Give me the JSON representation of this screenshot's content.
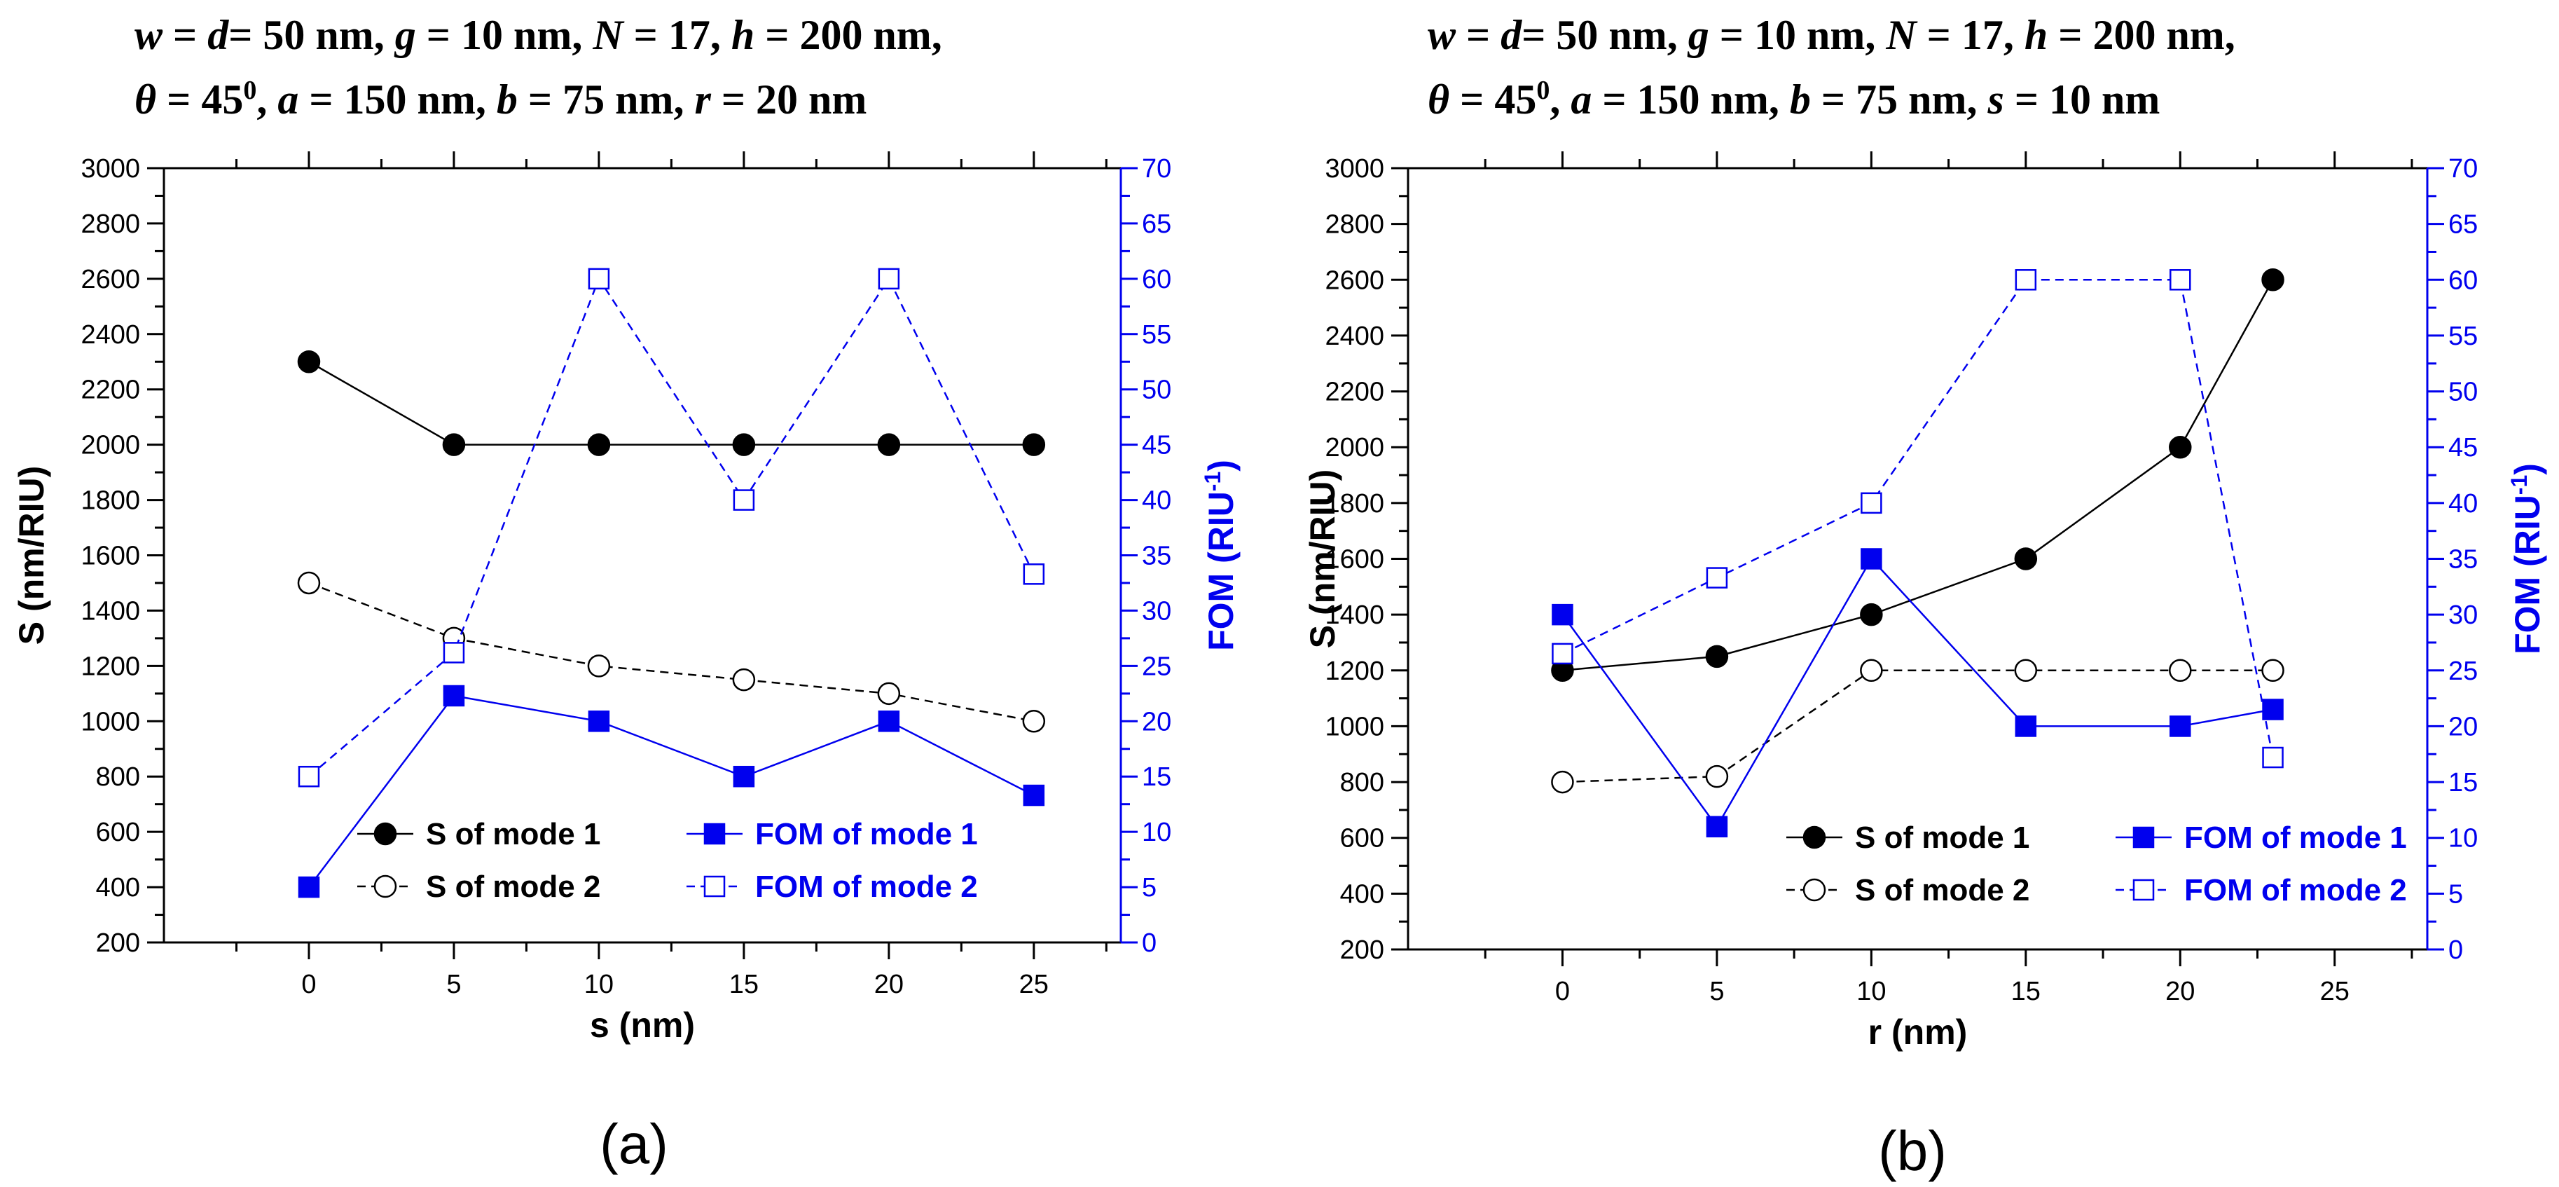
{
  "chart_data": [
    {
      "type": "line",
      "panel_label": "(a)",
      "title_lines": [
        [
          {
            "t": "w",
            "i": true
          },
          {
            "t": " = "
          },
          {
            "t": "d",
            "i": true
          },
          {
            "t": "= 50 nm, "
          },
          {
            "t": "g",
            "i": true
          },
          {
            "t": " = 10 nm, "
          },
          {
            "t": "N",
            "i": true
          },
          {
            "t": " = 17, "
          },
          {
            "t": "h",
            "i": true
          },
          {
            "t": " = 200 nm,"
          }
        ],
        [
          {
            "t": "θ",
            "i": true
          },
          {
            "t": " = 45"
          },
          {
            "t": "0",
            "sup": true
          },
          {
            "t": ", "
          },
          {
            "t": "a",
            "i": true
          },
          {
            "t": " = 150 nm, "
          },
          {
            "t": "b",
            "i": true
          },
          {
            "t": " = 75 nm, "
          },
          {
            "t": "r",
            "i": true
          },
          {
            "t": " = 20 nm"
          }
        ]
      ],
      "xlabel": "s (nm)",
      "ylabel_left": "S (nm/RIU)",
      "ylabel_right": "FOM (RIU",
      "ylabel_right_sup": "-1",
      "ylabel_right_close": ")",
      "xlim": [
        -5,
        28
      ],
      "xticks": [
        0,
        5,
        10,
        15,
        20,
        25
      ],
      "ylim_left": [
        200,
        3000
      ],
      "yticks_left": [
        200,
        400,
        600,
        800,
        1000,
        1200,
        1400,
        1600,
        1800,
        2000,
        2200,
        2400,
        2600,
        2800,
        3000
      ],
      "ylim_right": [
        0,
        70
      ],
      "yticks_right": [
        0,
        5,
        10,
        15,
        20,
        25,
        30,
        35,
        40,
        45,
        50,
        55,
        60,
        65,
        70
      ],
      "series": [
        {
          "name": "S of mode 1",
          "axis": "left",
          "marker": "circle",
          "filled": true,
          "dashed": false,
          "color": "#000000",
          "x": [
            0,
            5,
            10,
            15,
            20,
            25
          ],
          "values": [
            2300,
            2000,
            2000,
            2000,
            2000,
            2000
          ]
        },
        {
          "name": "S of mode 2",
          "axis": "left",
          "marker": "circle",
          "filled": false,
          "dashed": true,
          "color": "#000000",
          "x": [
            0,
            5,
            10,
            15,
            20,
            25
          ],
          "values": [
            1500,
            1300,
            1200,
            1150,
            1100,
            1000
          ]
        },
        {
          "name": "FOM of mode 1",
          "axis": "right",
          "marker": "square",
          "filled": true,
          "dashed": false,
          "color": "#0000ee",
          "x": [
            0,
            5,
            10,
            15,
            20,
            25
          ],
          "values": [
            5,
            22.3,
            20,
            15,
            20,
            13.3
          ]
        },
        {
          "name": "FOM of mode 2",
          "axis": "right",
          "marker": "square",
          "filled": false,
          "dashed": true,
          "color": "#0000ee",
          "x": [
            0,
            5,
            10,
            15,
            20,
            25
          ],
          "values": [
            15,
            26.2,
            60,
            40,
            60,
            33.3
          ]
        }
      ],
      "legend": {
        "placement": "bottom-center",
        "columns": [
          [
            "S of mode 1",
            "S of mode 2"
          ],
          [
            "FOM of mode 1",
            "FOM of mode 2"
          ]
        ]
      }
    },
    {
      "type": "line",
      "panel_label": "(b)",
      "title_lines": [
        [
          {
            "t": "w",
            "i": true
          },
          {
            "t": " = "
          },
          {
            "t": "d",
            "i": true
          },
          {
            "t": "= 50 nm, "
          },
          {
            "t": "g",
            "i": true
          },
          {
            "t": " = 10 nm, "
          },
          {
            "t": "N",
            "i": true
          },
          {
            "t": " = 17, "
          },
          {
            "t": "h",
            "i": true
          },
          {
            "t": " = 200 nm,"
          }
        ],
        [
          {
            "t": "θ",
            "i": true
          },
          {
            "t": " = 45"
          },
          {
            "t": "0",
            "sup": true
          },
          {
            "t": ", "
          },
          {
            "t": "a",
            "i": true
          },
          {
            "t": " = 150 nm, "
          },
          {
            "t": "b",
            "i": true
          },
          {
            "t": " = 75 nm, "
          },
          {
            "t": "s",
            "i": true
          },
          {
            "t": " = 10 nm"
          }
        ]
      ],
      "xlabel": "r (nm)",
      "ylabel_left": "S (nm/RIU)",
      "ylabel_right": "FOM (RIU",
      "ylabel_right_sup": "-1",
      "ylabel_right_close": ")",
      "xlim": [
        -5,
        28
      ],
      "xticks": [
        0,
        5,
        10,
        15,
        20,
        25
      ],
      "ylim_left": [
        200,
        3000
      ],
      "yticks_left": [
        200,
        400,
        600,
        800,
        1000,
        1200,
        1400,
        1600,
        1800,
        2000,
        2200,
        2400,
        2600,
        2800,
        3000
      ],
      "ylim_right": [
        0,
        70
      ],
      "yticks_right": [
        0,
        5,
        10,
        15,
        20,
        25,
        30,
        35,
        40,
        45,
        50,
        55,
        60,
        65,
        70
      ],
      "series": [
        {
          "name": "S of mode 1",
          "axis": "left",
          "marker": "circle",
          "filled": true,
          "dashed": false,
          "color": "#000000",
          "x": [
            0,
            5,
            10,
            15,
            20,
            23
          ],
          "values": [
            1200,
            1250,
            1400,
            1600,
            2000,
            2600
          ]
        },
        {
          "name": "S of mode 2",
          "axis": "left",
          "marker": "circle",
          "filled": false,
          "dashed": true,
          "color": "#000000",
          "x": [
            0,
            5,
            10,
            15,
            20,
            23
          ],
          "values": [
            800,
            820,
            1200,
            1200,
            1200,
            1200
          ]
        },
        {
          "name": "FOM of mode 1",
          "axis": "right",
          "marker": "square",
          "filled": true,
          "dashed": false,
          "color": "#0000ee",
          "x": [
            0,
            5,
            10,
            15,
            20,
            23
          ],
          "values": [
            30,
            11,
            35,
            20,
            20,
            21.5
          ]
        },
        {
          "name": "FOM of mode 2",
          "axis": "right",
          "marker": "square",
          "filled": false,
          "dashed": true,
          "color": "#0000ee",
          "x": [
            0,
            5,
            10,
            15,
            20,
            23
          ],
          "values": [
            26.5,
            33.3,
            40,
            60,
            60,
            17.2
          ]
        }
      ],
      "legend": {
        "placement": "bottom-right",
        "columns": [
          [
            "S of mode 1",
            "S of mode 2"
          ],
          [
            "FOM of mode 1",
            "FOM of mode 2"
          ]
        ]
      }
    }
  ]
}
